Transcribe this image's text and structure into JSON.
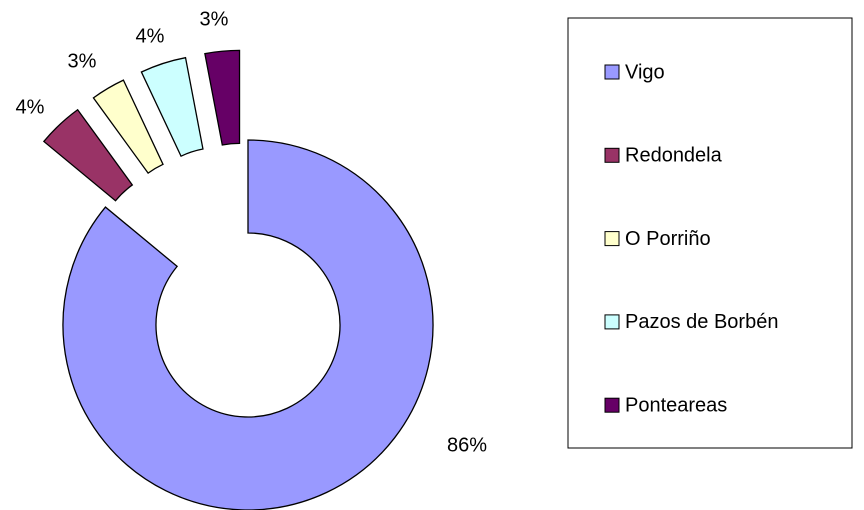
{
  "chart_data": {
    "type": "donut",
    "categories": [
      "Vigo",
      "Redondela",
      "O Porriño",
      "Pazos de Borbén",
      "Ponteareas"
    ],
    "values": [
      86,
      4,
      3,
      4,
      3
    ],
    "value_labels": [
      "86%",
      "4%",
      "3%",
      "4%",
      "3%"
    ],
    "colors": [
      "#9999ff",
      "#993366",
      "#ffffcc",
      "#ccffff",
      "#660066"
    ],
    "legend": "right"
  }
}
